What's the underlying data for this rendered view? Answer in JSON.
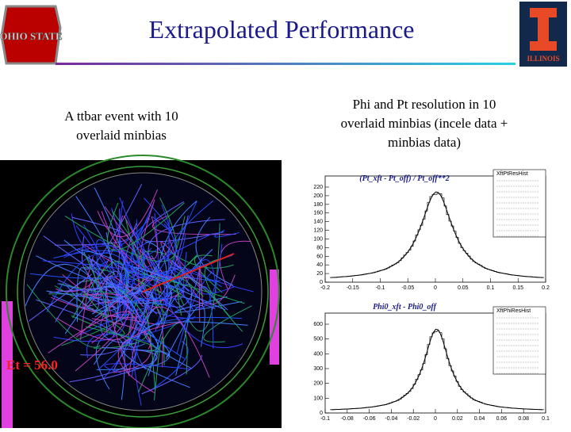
{
  "header": {
    "title": "Extrapolated Performance",
    "logo_left": "OHIO STATE",
    "logo_right": "ILLINOIS"
  },
  "left_panel": {
    "caption": [
      "A ttbar event with 10",
      "overlaid minbias"
    ],
    "event_label": "Et = 56.0"
  },
  "right_panel": {
    "caption": [
      "Phi and Pt resolution in  10",
      "overlaid minbias (incele data +",
      "minbias data)"
    ],
    "plots": [
      {
        "title": "(Pt_xft - Pt_off) / Pt_off**2",
        "stats_title": "XftPtResHist",
        "yticks": [
          "220",
          "200",
          "180",
          "160",
          "140",
          "120",
          "100",
          "80",
          "60",
          "40",
          "20",
          "0"
        ],
        "xticks": [
          "-0.2",
          "-0.15",
          "-0.1",
          "-0.05",
          "0",
          "0.05",
          "0.1",
          "0.15",
          "0.2"
        ]
      },
      {
        "title": "Phi0_xft - Phi0_off",
        "stats_title": "XftPhiResHist",
        "yticks": [
          "600",
          "500",
          "400",
          "300",
          "200",
          "100",
          "0"
        ],
        "xticks": [
          "-0.1",
          "-0.08",
          "-0.06",
          "-0.04",
          "-0.02",
          "0",
          "0.02",
          "0.04",
          "0.06",
          "0.08",
          "0.1"
        ]
      }
    ]
  }
}
